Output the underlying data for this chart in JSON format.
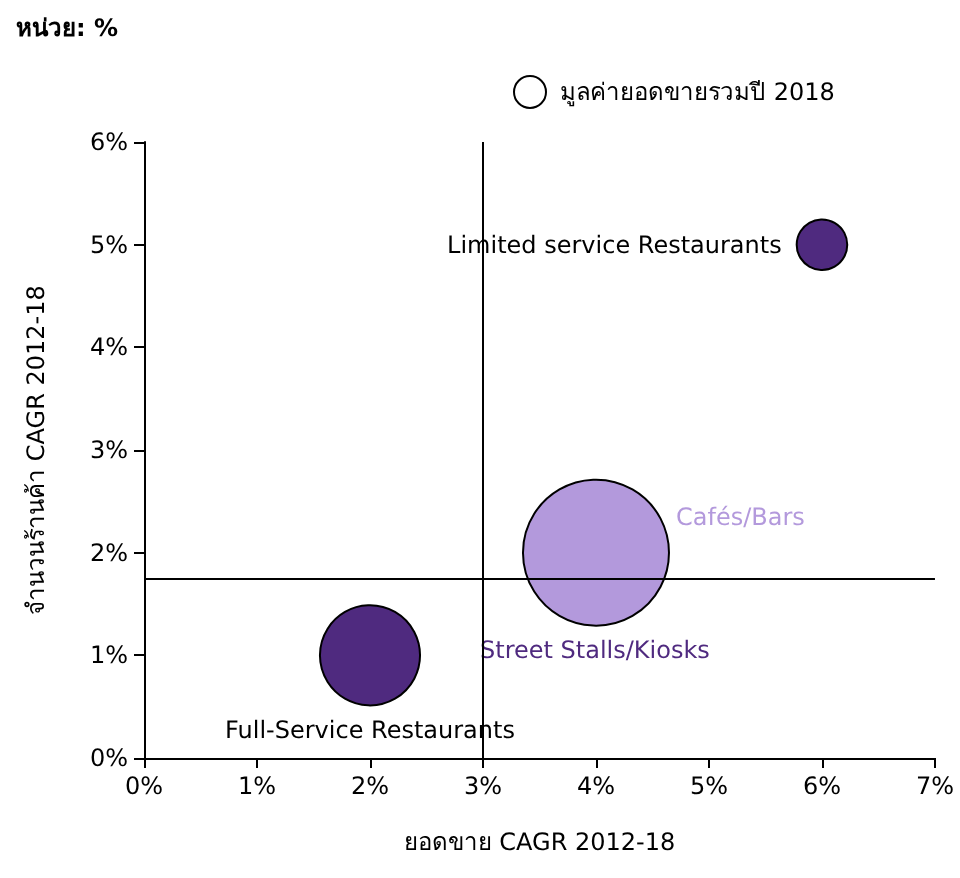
{
  "chart_data": {
    "type": "bubble",
    "subtitle": "หน่วย: %",
    "legend_title": "มูลค่ายอดขายรวมปี 2018",
    "xlabel": "ยอดขาย CAGR 2012-18",
    "ylabel": "จำนวนร้านค้า CAGR 2012-18",
    "xlim": [
      0,
      7
    ],
    "ylim": [
      0,
      6
    ],
    "xticks": [
      {
        "value": 0,
        "label": "0%"
      },
      {
        "value": 1,
        "label": "1%"
      },
      {
        "value": 2,
        "label": "2%"
      },
      {
        "value": 3,
        "label": "3%"
      },
      {
        "value": 4,
        "label": "4%"
      },
      {
        "value": 5,
        "label": "5%"
      },
      {
        "value": 6,
        "label": "6%"
      },
      {
        "value": 7,
        "label": "7%"
      }
    ],
    "yticks": [
      {
        "value": 0,
        "label": "0%"
      },
      {
        "value": 1,
        "label": "1%"
      },
      {
        "value": 2,
        "label": "2%"
      },
      {
        "value": 3,
        "label": "3%"
      },
      {
        "value": 4,
        "label": "4%"
      },
      {
        "value": 5,
        "label": "5%"
      },
      {
        "value": 6,
        "label": "6%"
      }
    ],
    "series": [
      {
        "name": "Limited service Restaurants",
        "color": "#4f2a7f",
        "x": [
          6
        ],
        "values": [
          5
        ],
        "sizes": [
          0.12
        ]
      },
      {
        "name": "Cafés/Bars",
        "color": "#b399dc",
        "x": [
          4
        ],
        "values": [
          2
        ],
        "sizes": [
          1
        ]
      },
      {
        "name": "Full-Service Restaurants",
        "color": "#4f2a7f",
        "x": [
          2
        ],
        "values": [
          1
        ],
        "sizes": [
          0.47
        ]
      }
    ],
    "annotations": [
      "Street Stalls/Kiosks"
    ],
    "ref_lines": [
      {
        "axis": "x",
        "value": 3
      },
      {
        "axis": "y",
        "value": 1.75
      }
    ],
    "grid": false,
    "legend": false
  }
}
